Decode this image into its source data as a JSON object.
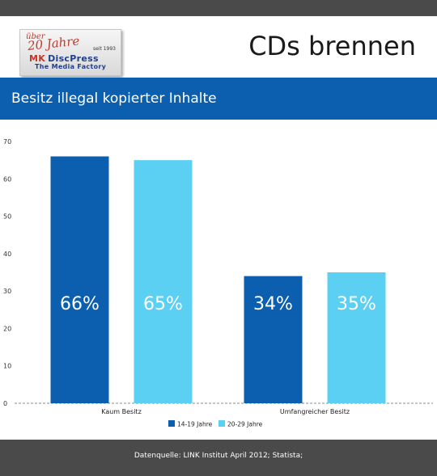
{
  "header": {
    "title": "CDs brennen",
    "logo": {
      "ueber": "über",
      "jahre": "20 Jahre",
      "seit": "seit 1993",
      "mk": "MK",
      "brand": "DiscPress",
      "tagline": "The Media Factory"
    }
  },
  "banner": {
    "title": "Besitz illegal kopierter Inhalte"
  },
  "footer": {
    "source": "Datenquelle: LINK Institut April 2012; Statista;"
  },
  "colors": {
    "series1": "#0b5fae",
    "series2": "#5bd0f2",
    "banner": "#0b5fae",
    "bars_text": "#ffffff"
  },
  "chart_data": {
    "type": "bar",
    "categories": [
      "Kaum Besitz",
      "Umfangreicher Besitz"
    ],
    "series": [
      {
        "name": "14-19 Jahre",
        "values": [
          66,
          34
        ],
        "labels": [
          "66%",
          "34%"
        ]
      },
      {
        "name": "20-29 Jahre",
        "values": [
          65,
          35
        ],
        "labels": [
          "65%",
          "35%"
        ]
      }
    ],
    "yticks": [
      0,
      10,
      20,
      30,
      40,
      50,
      60,
      70
    ],
    "ylim": [
      0,
      70
    ],
    "title": "Besitz illegal kopierter Inhalte",
    "xlabel": "",
    "ylabel": "",
    "grid": false,
    "legend": "bottom"
  }
}
